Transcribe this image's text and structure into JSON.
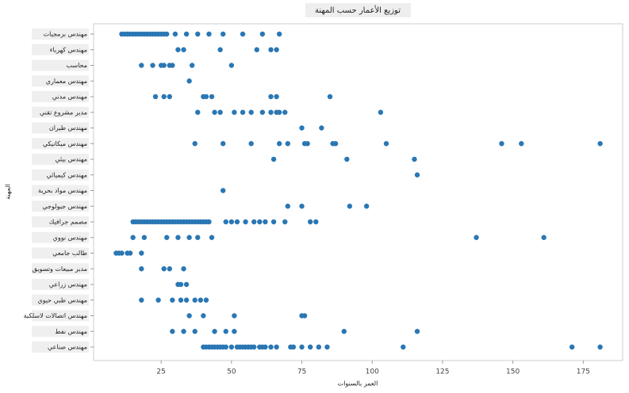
{
  "chart_data": {
    "type": "scatter",
    "title": "توزيع الأعمار حسب المهنة",
    "xlabel": "العمر بالسنوات",
    "ylabel": "المهنة",
    "color": "#2a77b4",
    "xlim": [
      1,
      189
    ],
    "xticks": [
      25,
      50,
      75,
      100,
      125,
      150,
      175
    ],
    "grid": false,
    "categories": [
      "مهندس برمجيات",
      "مهندس كهرباء",
      "محاسب",
      "مهندس معماري",
      "مهندس مدني",
      "مدير مشروع تقني",
      "مهندس طيران",
      "مهندس ميكانيكي",
      "مهندس بيئي",
      "مهندس كيميائي",
      "مهندس مواد بحرية",
      "مهندس جيولوجي",
      "مصمم جرافيك",
      "مهندس نووي",
      "طالب جامعي",
      "مدير مبيعات وتسويق",
      "مهندس زراعي",
      "مهندس طبي حيوي",
      "مهندس اتصالات لاسلكية",
      "مهندس نفط",
      "مهندس صناعي"
    ],
    "series": [
      [
        11,
        12,
        13,
        14,
        15,
        16,
        17,
        18,
        19,
        20,
        21,
        22,
        23,
        24,
        25,
        26,
        27,
        30,
        34,
        38,
        42,
        47,
        54,
        61,
        67
      ],
      [
        31,
        33,
        46,
        59,
        64,
        66
      ],
      [
        18,
        22,
        25,
        26,
        28,
        29,
        36,
        50
      ],
      [
        35
      ],
      [
        23,
        26,
        28,
        40,
        41,
        43,
        64,
        66,
        85
      ],
      [
        38,
        44,
        46,
        51,
        54,
        57,
        61,
        64,
        66,
        67,
        69,
        103
      ],
      [
        75,
        82
      ],
      [
        37,
        47,
        57,
        67,
        70,
        76,
        77,
        86,
        87,
        105,
        146,
        153,
        181
      ],
      [
        65,
        91,
        115
      ],
      [
        116
      ],
      [
        47
      ],
      [
        70,
        75,
        92,
        98
      ],
      [
        15,
        16,
        17,
        18,
        19,
        20,
        21,
        22,
        23,
        24,
        25,
        26,
        27,
        28,
        29,
        30,
        31,
        32,
        33,
        34,
        35,
        36,
        37,
        38,
        39,
        40,
        41,
        42,
        48,
        50,
        52,
        55,
        58,
        60,
        62,
        65,
        69,
        78,
        80
      ],
      [
        15,
        19,
        27,
        31,
        35,
        38,
        43,
        137,
        161
      ],
      [
        9,
        10,
        11,
        13,
        14,
        18
      ],
      [
        18,
        26,
        28,
        33
      ],
      [
        31,
        32,
        34
      ],
      [
        18,
        24,
        29,
        32,
        34,
        37,
        39,
        41
      ],
      [
        35,
        40,
        51,
        75,
        76
      ],
      [
        29,
        33,
        37,
        44,
        48,
        51,
        90,
        116
      ],
      [
        40,
        41,
        42,
        43,
        44,
        45,
        46,
        47,
        48,
        50,
        52,
        53,
        54,
        55,
        56,
        57,
        58,
        60,
        61,
        62,
        64,
        66,
        71,
        72,
        75,
        78,
        81,
        84,
        111,
        171,
        181
      ]
    ]
  }
}
